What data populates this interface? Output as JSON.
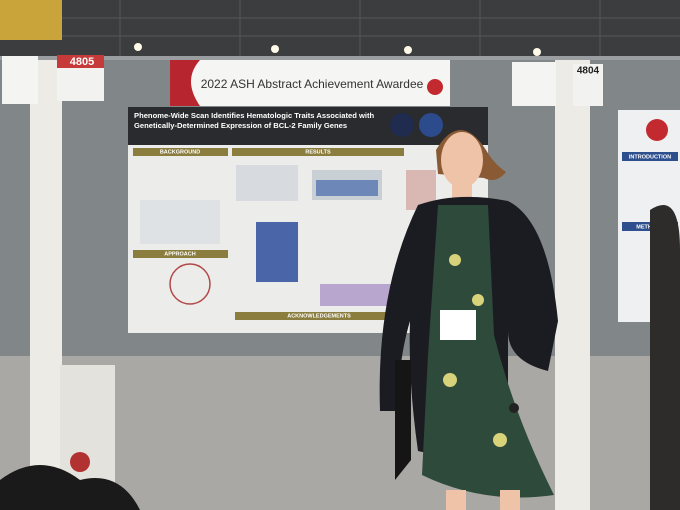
{
  "banner": {
    "title": "2022 ASH Abstract Achievement Awardee"
  },
  "boards": {
    "left_number": "4805",
    "right_number": "4804"
  },
  "poster": {
    "title_lines": [
      "Phenome-Wide Scan Identifies Hematologic Traits Associated with",
      "Genetically-Determined Expression of BCL-2 Family Genes"
    ],
    "sections": [
      "BACKGROUND",
      "RESULTS",
      "APPROACH",
      "ACKNOWLEDGEMENTS"
    ]
  },
  "right_poster": {
    "sections": [
      "INTRODUCTION",
      "METHODS"
    ]
  }
}
